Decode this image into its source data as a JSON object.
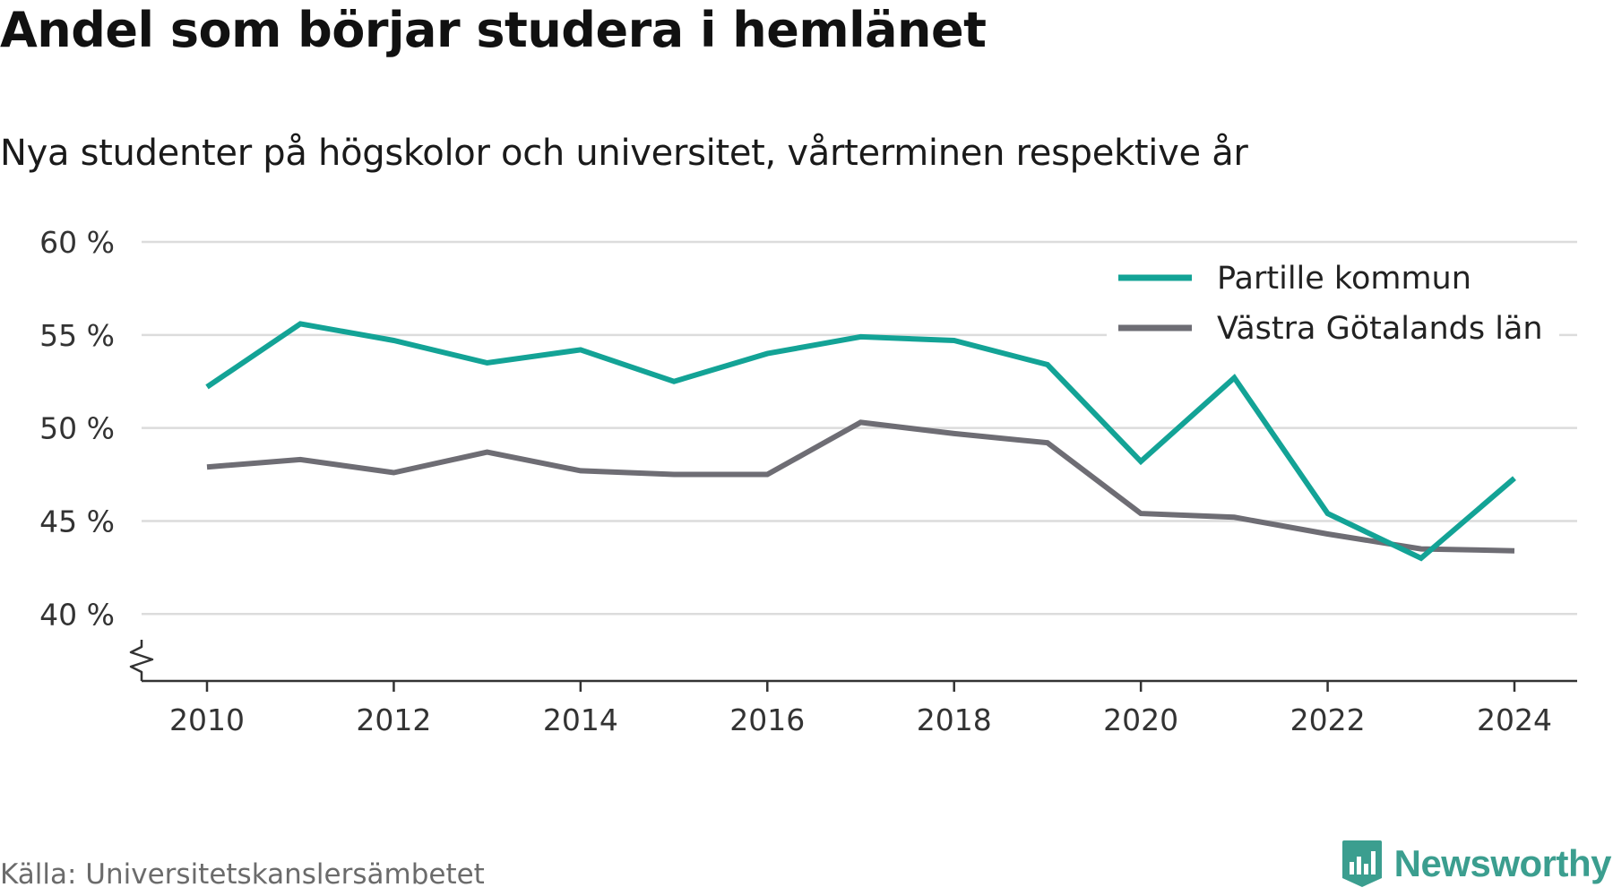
{
  "title": "Andel som börjar studera i hemlänet",
  "subtitle": "Nya studenter på högskolor och universitet, vårterminen respektive år",
  "source": "Källa: Universitetskanslersämbetet",
  "brand": "Newsworthy",
  "chart_data": {
    "type": "line",
    "x": [
      2010,
      2011,
      2012,
      2013,
      2014,
      2015,
      2016,
      2017,
      2018,
      2019,
      2020,
      2021,
      2022,
      2023,
      2024
    ],
    "x_ticks": [
      "2010",
      "2012",
      "2014",
      "2016",
      "2018",
      "2020",
      "2022",
      "2024"
    ],
    "y_ticks": [
      "40 %",
      "45 %",
      "50 %",
      "55 %",
      "60 %"
    ],
    "ylim": [
      36.4,
      60
    ],
    "y_axis_break": true,
    "grid": true,
    "legend_position": "top-right",
    "series": [
      {
        "name": "Partille kommun",
        "color": "#13a396",
        "values": [
          52.2,
          55.6,
          54.7,
          53.5,
          54.2,
          52.5,
          54.0,
          54.9,
          54.7,
          53.4,
          48.2,
          52.7,
          45.4,
          43.0,
          47.3
        ]
      },
      {
        "name": "Västra Götalands län",
        "color": "#6e6d74",
        "values": [
          47.9,
          48.3,
          47.6,
          48.7,
          47.7,
          47.5,
          47.5,
          50.3,
          49.7,
          49.2,
          45.4,
          45.2,
          44.3,
          43.5,
          43.4
        ]
      }
    ]
  }
}
